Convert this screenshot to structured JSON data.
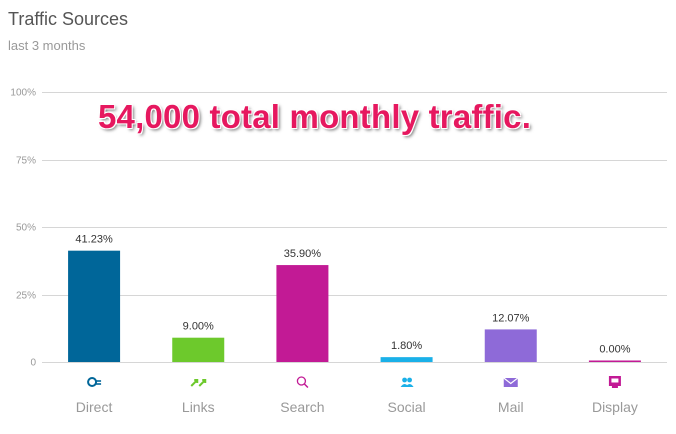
{
  "header": {
    "title": "Traffic Sources",
    "subtitle": "last 3 months"
  },
  "callout": "54,000 total monthly traffic.",
  "chart_data": {
    "type": "bar",
    "title": "Traffic Sources",
    "subtitle": "last 3 months",
    "categories": [
      "Direct",
      "Links",
      "Search",
      "Social",
      "Mail",
      "Display"
    ],
    "values": [
      41.23,
      9.0,
      35.9,
      1.8,
      12.07,
      0.0
    ],
    "data_labels": [
      "41.23%",
      "9.00%",
      "35.90%",
      "1.80%",
      "12.07%",
      "0.00%"
    ],
    "colors": [
      "#006699",
      "#6dc92c",
      "#c21a95",
      "#1ab0e8",
      "#8e6ad8",
      "#c21a95"
    ],
    "icons": [
      "direct-icon",
      "links-icon",
      "search-icon",
      "social-icon",
      "mail-icon",
      "display-icon"
    ],
    "yticks": [
      0,
      25,
      50,
      75,
      100
    ],
    "ytick_labels": [
      "0",
      "25%",
      "50%",
      "75%",
      "100%"
    ],
    "ylim": [
      0,
      100
    ],
    "grid": true,
    "legend": "none"
  }
}
